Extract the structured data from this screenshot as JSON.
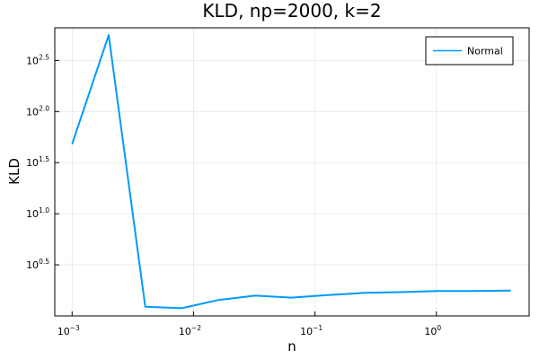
{
  "chart_data": {
    "type": "line",
    "title": "KLD, np=2000, k=2",
    "xlabel": "n",
    "ylabel": "KLD",
    "x_scale": "log10",
    "y_scale": "log10",
    "xlim": [
      0.00072,
      5.8
    ],
    "ylim": [
      1.0,
      660
    ],
    "grid": true,
    "legend_position": "top-right",
    "x_ticks": [
      {
        "base": "10",
        "exp": "−3",
        "value": 0.001
      },
      {
        "base": "10",
        "exp": "−2",
        "value": 0.01
      },
      {
        "base": "10",
        "exp": "−1",
        "value": 0.1
      },
      {
        "base": "10",
        "exp": "0",
        "value": 1
      }
    ],
    "y_ticks": [
      {
        "base": "10",
        "exp": "0.5",
        "value": 3.162
      },
      {
        "base": "10",
        "exp": "1.0",
        "value": 10
      },
      {
        "base": "10",
        "exp": "1.5",
        "value": 31.62
      },
      {
        "base": "10",
        "exp": "2.0",
        "value": 100
      },
      {
        "base": "10",
        "exp": "2.5",
        "value": 316.2
      }
    ],
    "series": [
      {
        "name": "Normal",
        "color": "#009af9",
        "x": [
          0.001,
          0.002,
          0.004,
          0.008,
          0.016,
          0.032,
          0.064,
          0.128,
          0.256,
          0.512,
          1.024,
          2.048,
          4.096
        ],
        "y": [
          48,
          560,
          1.23,
          1.19,
          1.43,
          1.58,
          1.51,
          1.6,
          1.68,
          1.71,
          1.75,
          1.75,
          1.77
        ]
      }
    ]
  }
}
